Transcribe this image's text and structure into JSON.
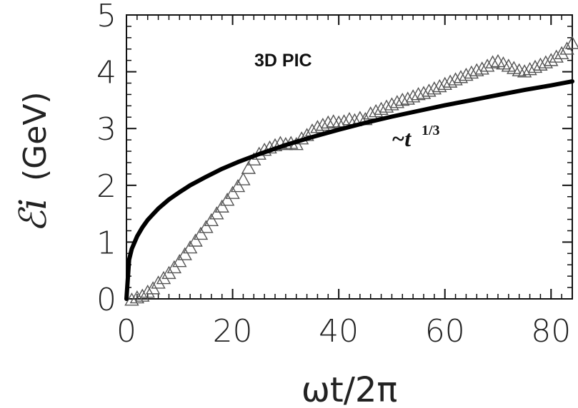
{
  "chart_data": {
    "type": "scatter",
    "title": "",
    "xlabel": "ωt/2π",
    "ylabel_symbol": "ℰi",
    "ylabel_unit": "(GeV)",
    "xlim": [
      0,
      84
    ],
    "ylim": [
      0,
      5
    ],
    "x_ticks": [
      "0",
      "20",
      "40",
      "60",
      "80"
    ],
    "y_ticks": [
      "0",
      "1",
      "2",
      "3",
      "4",
      "5"
    ],
    "grid": false,
    "annotations": {
      "simulation": "3D PIC",
      "fit": "~t",
      "fit_exponent": "1/3"
    },
    "series": [
      {
        "marker": "triangle-open",
        "color": "#555555",
        "points": [
          [
            1,
            -0.02
          ],
          [
            2,
            0.02
          ],
          [
            3,
            0.05
          ],
          [
            4,
            0.12
          ],
          [
            5,
            0.18
          ],
          [
            6,
            0.28
          ],
          [
            7,
            0.36
          ],
          [
            8,
            0.45
          ],
          [
            9,
            0.55
          ],
          [
            10,
            0.66
          ],
          [
            11,
            0.78
          ],
          [
            12,
            0.9
          ],
          [
            13,
            1.02
          ],
          [
            14,
            1.14
          ],
          [
            15,
            1.26
          ],
          [
            16,
            1.38
          ],
          [
            17,
            1.5
          ],
          [
            18,
            1.62
          ],
          [
            19,
            1.74
          ],
          [
            20,
            1.86
          ],
          [
            21,
            1.98
          ],
          [
            22,
            2.1
          ],
          [
            23,
            2.3
          ],
          [
            24,
            2.45
          ],
          [
            25,
            2.55
          ],
          [
            26,
            2.62
          ],
          [
            27,
            2.66
          ],
          [
            28,
            2.7
          ],
          [
            29,
            2.74
          ],
          [
            30,
            2.72
          ],
          [
            31,
            2.74
          ],
          [
            32,
            2.72
          ],
          [
            33,
            2.82
          ],
          [
            34,
            2.88
          ],
          [
            35,
            2.96
          ],
          [
            36,
            3.02
          ],
          [
            37,
            3.06
          ],
          [
            38,
            3.1
          ],
          [
            39,
            3.12
          ],
          [
            40,
            3.1
          ],
          [
            41,
            3.12
          ],
          [
            42,
            3.16
          ],
          [
            43,
            3.14
          ],
          [
            44,
            3.18
          ],
          [
            45,
            3.16
          ],
          [
            46,
            3.26
          ],
          [
            47,
            3.3
          ],
          [
            48,
            3.34
          ],
          [
            49,
            3.38
          ],
          [
            50,
            3.42
          ],
          [
            51,
            3.46
          ],
          [
            52,
            3.5
          ],
          [
            53,
            3.52
          ],
          [
            54,
            3.56
          ],
          [
            55,
            3.6
          ],
          [
            56,
            3.62
          ],
          [
            57,
            3.66
          ],
          [
            58,
            3.7
          ],
          [
            59,
            3.74
          ],
          [
            60,
            3.78
          ],
          [
            61,
            3.82
          ],
          [
            62,
            3.86
          ],
          [
            63,
            3.9
          ],
          [
            64,
            3.94
          ],
          [
            65,
            3.98
          ],
          [
            66,
            4.02
          ],
          [
            67,
            4.05
          ],
          [
            68,
            4.1
          ],
          [
            69,
            4.16
          ],
          [
            70,
            4.18
          ],
          [
            71,
            4.14
          ],
          [
            72,
            4.1
          ],
          [
            73,
            4.06
          ],
          [
            74,
            4.02
          ],
          [
            75,
            4.0
          ],
          [
            76,
            4.04
          ],
          [
            77,
            4.08
          ],
          [
            78,
            4.12
          ],
          [
            79,
            4.16
          ],
          [
            80,
            4.2
          ],
          [
            81,
            4.26
          ],
          [
            82,
            4.32
          ],
          [
            83,
            4.4
          ],
          [
            84,
            4.5
          ]
        ]
      },
      {
        "marker": "none",
        "line": "solid-thick",
        "color": "#000000",
        "points": [
          [
            0,
            0.0
          ],
          [
            0.5,
            0.69
          ],
          [
            1,
            0.88
          ],
          [
            2,
            1.1
          ],
          [
            3,
            1.26
          ],
          [
            4,
            1.39
          ],
          [
            5,
            1.49
          ],
          [
            6,
            1.59
          ],
          [
            8,
            1.75
          ],
          [
            10,
            1.88
          ],
          [
            12,
            2.0
          ],
          [
            15,
            2.15
          ],
          [
            18,
            2.29
          ],
          [
            21,
            2.41
          ],
          [
            25,
            2.55
          ],
          [
            30,
            2.71
          ],
          [
            35,
            2.85
          ],
          [
            40,
            2.98
          ],
          [
            45,
            3.1
          ],
          [
            50,
            3.21
          ],
          [
            55,
            3.31
          ],
          [
            60,
            3.41
          ],
          [
            65,
            3.5
          ],
          [
            70,
            3.59
          ],
          [
            75,
            3.68
          ],
          [
            80,
            3.76
          ],
          [
            84,
            3.83
          ]
        ]
      }
    ]
  }
}
